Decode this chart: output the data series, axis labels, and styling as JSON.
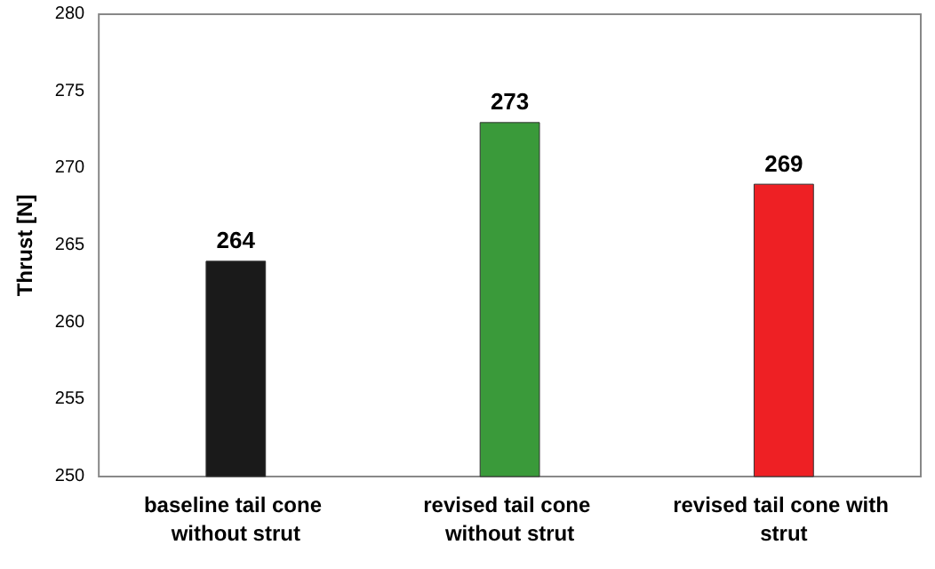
{
  "chart_data": {
    "type": "bar",
    "ylabel": "Thrust [N]",
    "categories": [
      "baseline tail cone without strut",
      "revised tail cone without strut",
      "revised tail cone with strut"
    ],
    "values": [
      264,
      273,
      269
    ],
    "colors": [
      "#1a1a1a",
      "#3a9a3a",
      "#ee2024"
    ],
    "ylim": [
      250,
      280
    ],
    "yticks": [
      250,
      255,
      260,
      265,
      270,
      275,
      280
    ],
    "grid": false,
    "data_labels": true
  }
}
